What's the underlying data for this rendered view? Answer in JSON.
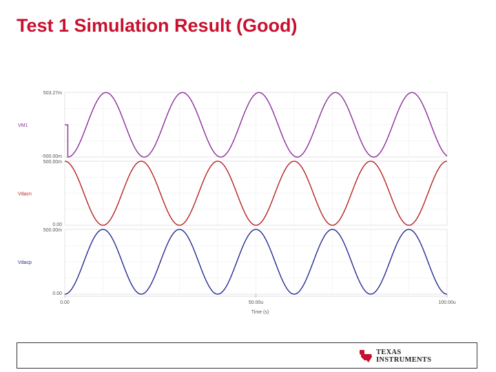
{
  "slide": {
    "title": "Test 1 Simulation Result (Good)"
  },
  "chart_data": {
    "type": "line",
    "title": "",
    "xlabel": "Time (s)",
    "x_unit": "s",
    "xlim": [
      0,
      0.0001
    ],
    "x_ticks": [
      {
        "value": 0,
        "label": "0.00"
      },
      {
        "value": 5e-05,
        "label": "50.00u"
      },
      {
        "value": 0.0001,
        "label": "100.00u"
      }
    ],
    "period": 2e-05,
    "grid": true,
    "panels": [
      {
        "name": "VM1",
        "color": "#8b2a9a",
        "ylim": [
          -0.5,
          0.50327
        ],
        "y_tick_labels": [
          "503.27m",
          "-500.00m"
        ],
        "amplitude": 0.5,
        "offset": 0,
        "phase_deg": -90,
        "start_time": 8e-07,
        "initial_value": 0
      },
      {
        "name": "Vdacn",
        "color": "#b5211f",
        "ylim": [
          0,
          0.5
        ],
        "y_tick_labels": [
          "500.00m",
          "0.00"
        ],
        "amplitude": 0.25,
        "offset": 0.25,
        "phase_deg": 90,
        "start_time": 0
      },
      {
        "name": "Vdacp",
        "color": "#24298e",
        "ylim": [
          0,
          0.5
        ],
        "y_tick_labels": [
          "500.00m",
          "0.00"
        ],
        "amplitude": 0.25,
        "offset": 0.25,
        "phase_deg": -90,
        "start_time": 0
      }
    ]
  },
  "logo": {
    "line1": "Texas",
    "line2": "Instruments",
    "color": "#c8102e"
  }
}
